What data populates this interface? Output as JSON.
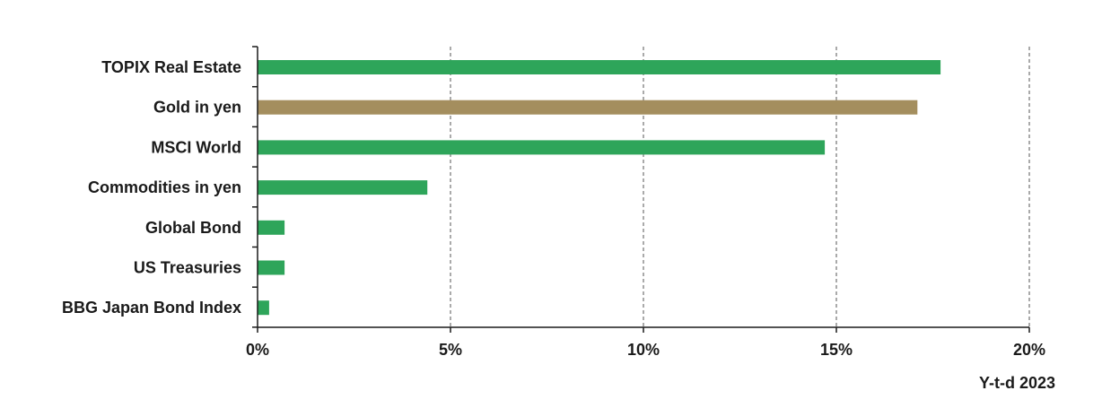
{
  "chart_data": {
    "type": "bar",
    "orientation": "horizontal",
    "categories": [
      "TOPIX Real Estate",
      "Gold in yen",
      "MSCI World",
      "Commodities in yen",
      "Global Bond",
      "US Treasuries",
      "BBG Japan Bond Index"
    ],
    "values": [
      17.7,
      17.1,
      14.7,
      4.4,
      0.7,
      0.7,
      0.3
    ],
    "bar_colors": [
      "#2ea55a",
      "#a48e5e",
      "#2ea55a",
      "#2ea55a",
      "#2ea55a",
      "#2ea55a",
      "#2ea55a"
    ],
    "x_ticks": [
      0,
      5,
      10,
      15,
      20
    ],
    "x_tick_labels": [
      "0%",
      "5%",
      "10%",
      "15%",
      "20%"
    ],
    "xlim": [
      0,
      20
    ],
    "xlabel": "Y-t-d 2023",
    "grid": "vertical dashed",
    "colors": {
      "primary_bar": "#2ea55a",
      "highlight_bar": "#a48e5e",
      "axis": "#1a1a1a",
      "grid": "#555555"
    }
  }
}
